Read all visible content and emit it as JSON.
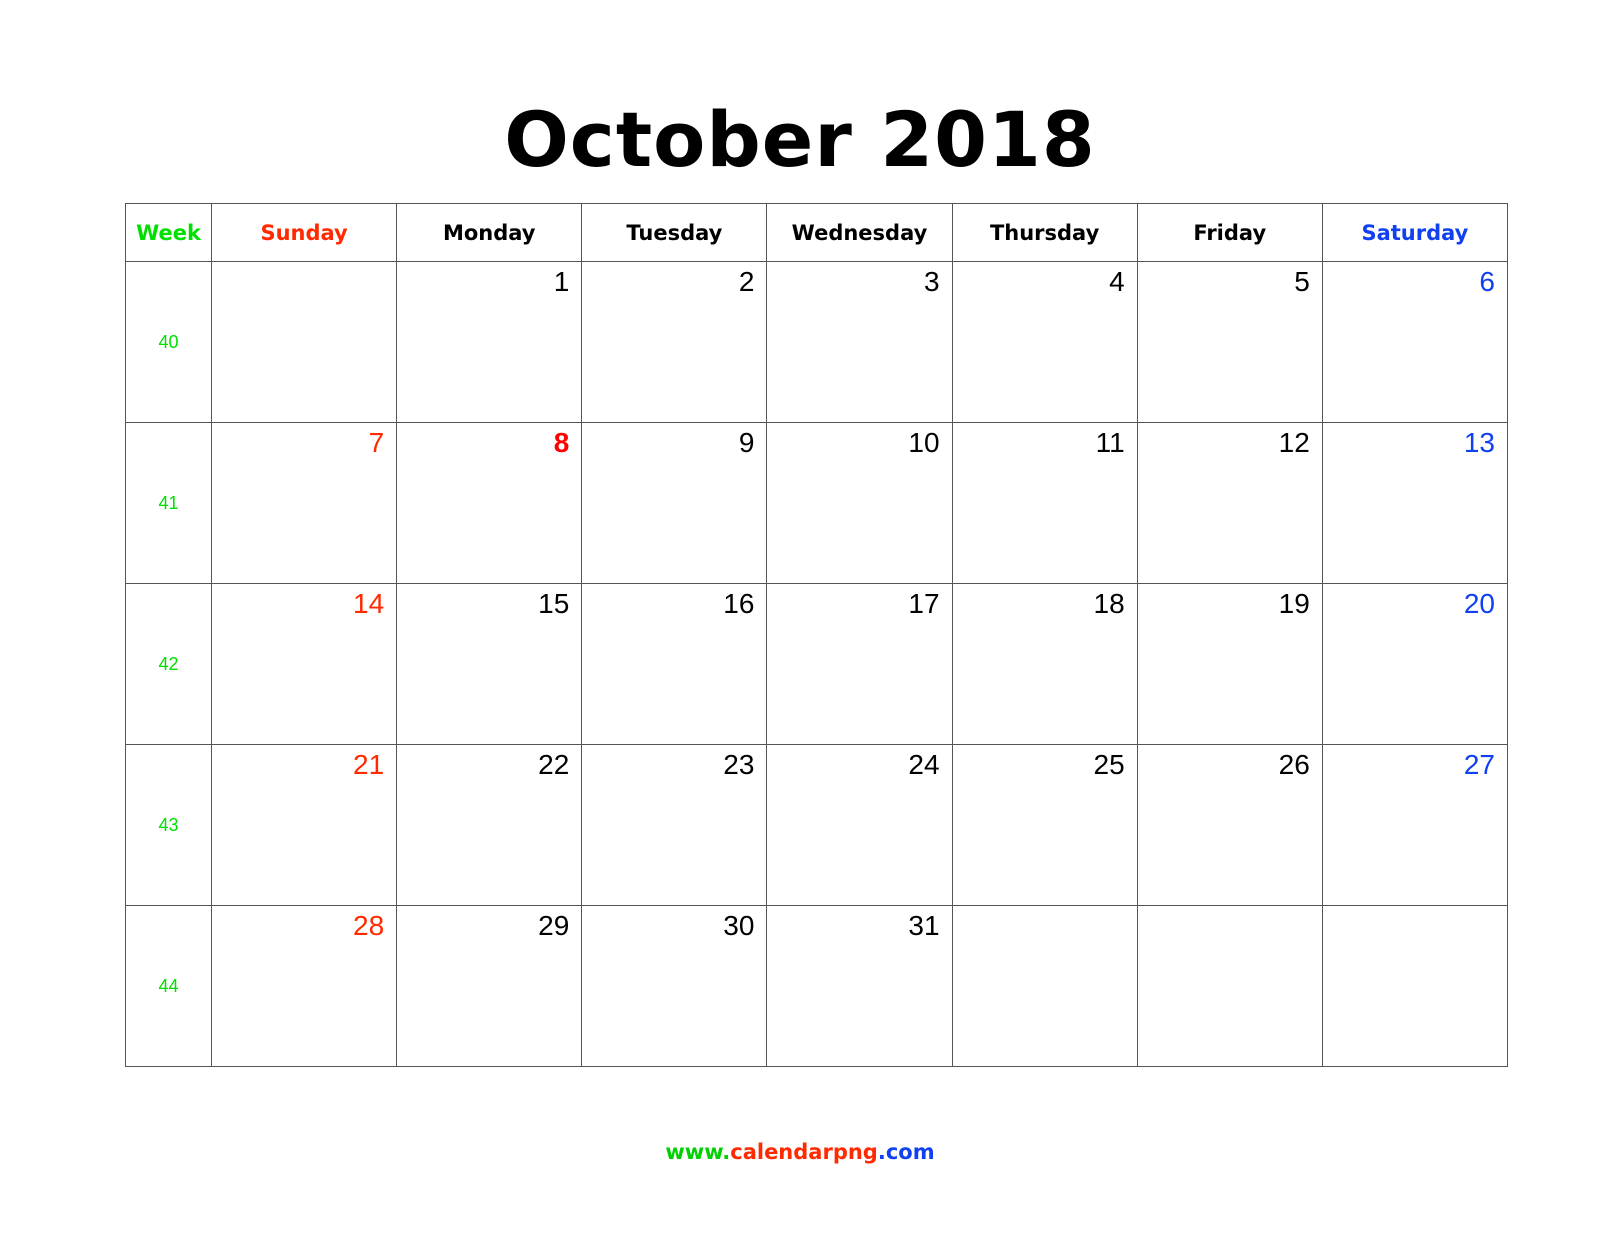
{
  "title": "October 2018",
  "colors": {
    "week": "#00e000",
    "sunday": "#ff2a00",
    "saturday": "#1040f0",
    "weekday": "#000000",
    "holiday": "#ff0000",
    "grid": "#555555"
  },
  "headers": {
    "week": "Week",
    "days": [
      "Sunday",
      "Monday",
      "Tuesday",
      "Wednesday",
      "Thursday",
      "Friday",
      "Saturday"
    ]
  },
  "weeks": [
    {
      "number": "40",
      "days": [
        "",
        "1",
        "2",
        "3",
        "4",
        "5",
        "6"
      ]
    },
    {
      "number": "41",
      "days": [
        "7",
        "8",
        "9",
        "10",
        "11",
        "12",
        "13"
      ]
    },
    {
      "number": "42",
      "days": [
        "14",
        "15",
        "16",
        "17",
        "18",
        "19",
        "20"
      ]
    },
    {
      "number": "43",
      "days": [
        "21",
        "22",
        "23",
        "24",
        "25",
        "26",
        "27"
      ]
    },
    {
      "number": "44",
      "days": [
        "28",
        "29",
        "30",
        "31",
        "",
        "",
        ""
      ]
    }
  ],
  "holidays": [
    "8"
  ],
  "footer": {
    "prefix": "www.",
    "middle": "calendarpng",
    "suffix": ".com"
  }
}
